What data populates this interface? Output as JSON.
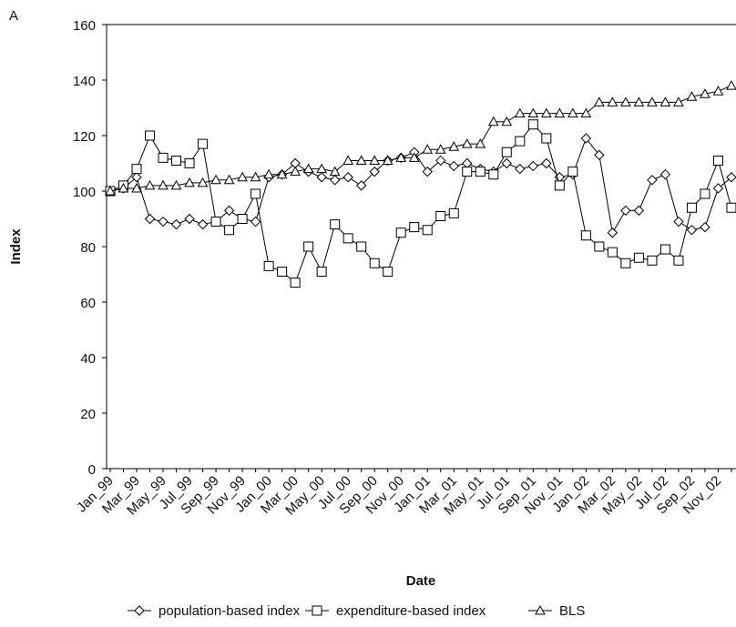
{
  "chart_data": {
    "type": "line",
    "panel_label": "A",
    "x_label": "Date",
    "y_label": "Index",
    "categories": [
      "Jan_99",
      null,
      "Mar_99",
      null,
      "May_99",
      null,
      "Jul_99",
      null,
      "Sep_99",
      null,
      "Nov_99",
      null,
      "Jan_00",
      null,
      "Mar_00",
      null,
      "May_00",
      null,
      "Jul_00",
      null,
      "Sep_00",
      null,
      "Nov_00",
      null,
      "Jan_01",
      null,
      "Mar_01",
      null,
      "May_01",
      null,
      "Jul_01",
      null,
      "Sep_01",
      null,
      "Nov_01",
      null,
      "Jan_02",
      null,
      "Mar_02",
      null,
      "May_02",
      null,
      "Jul_02",
      null,
      "Sep_02",
      null,
      "Nov_02",
      null
    ],
    "series": [
      {
        "name": "population-based index",
        "color": "#000000",
        "marker": "diamond",
        "values": [
          100,
          101,
          105,
          90,
          89,
          88,
          90,
          88,
          89,
          93,
          90,
          89,
          105,
          106,
          110,
          107,
          105,
          104,
          105,
          102,
          107,
          111,
          112,
          114,
          107,
          111,
          109,
          110,
          108,
          107,
          110,
          108,
          109,
          110,
          105,
          106,
          119,
          113,
          85,
          93,
          93,
          104,
          106,
          89,
          86,
          87,
          101,
          105
        ]
      },
      {
        "name": "expenditure-based index",
        "color": "#000000",
        "marker": "square",
        "values": [
          100,
          102,
          108,
          120,
          112,
          111,
          110,
          117,
          89,
          86,
          90,
          99,
          73,
          71,
          67,
          80,
          71,
          88,
          83,
          80,
          74,
          71,
          85,
          87,
          86,
          91,
          92,
          107,
          107,
          106,
          114,
          118,
          124,
          119,
          102,
          107,
          84,
          80,
          78,
          74,
          76,
          75,
          79,
          75,
          94,
          99,
          111,
          94
        ]
      },
      {
        "name": "BLS",
        "color": "#000000",
        "marker": "triangle",
        "values": [
          100,
          101,
          101,
          102,
          102,
          102,
          103,
          103,
          104,
          104,
          105,
          105,
          106,
          106,
          107,
          108,
          108,
          107,
          111,
          111,
          111,
          111,
          112,
          112,
          115,
          115,
          116,
          117,
          117,
          125,
          125,
          128,
          128,
          128,
          128,
          128,
          128,
          132,
          132,
          132,
          132,
          132,
          132,
          132,
          134,
          135,
          136,
          138
        ]
      }
    ],
    "ylim": [
      0,
      160
    ],
    "yticks": [
      0,
      20,
      40,
      60,
      80,
      100,
      120,
      140,
      160
    ],
    "grid": false,
    "legend": "bottom"
  }
}
